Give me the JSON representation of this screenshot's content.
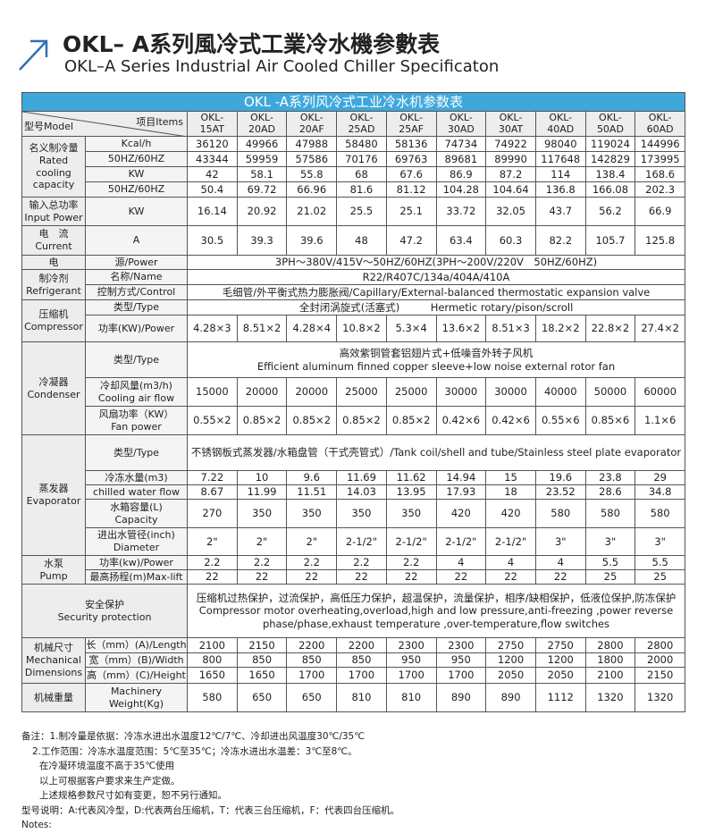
{
  "header": {
    "title": "OKL– A系列風冷式工業冷水機参數表",
    "subtitle": "OKL–A Series Industrial Air Cooled Chiller Specificaton"
  },
  "table": {
    "caption": "OKL -A系列风冷式工业冷水机参数表",
    "corner": {
      "left": "型号Model",
      "right": "项目Items"
    },
    "models": [
      "OKL-\n15AT",
      "OKL-\n20AD",
      "OKL-\n20AF",
      "OKL-\n25AD",
      "OKL-\n25AF",
      "OKL-\n30AD",
      "OKL-\n30AT",
      "OKL-\n40AD",
      "OKL-\n50AD",
      "OKL-\n60AD"
    ],
    "groups": [
      {
        "label": "名义制冷量\nRated\ncooling\ncapacity",
        "rows": [
          {
            "item": "Kcal/h",
            "values": [
              36120,
              49966,
              47988,
              58480,
              58136,
              74734,
              74922,
              98040,
              119024,
              144996
            ]
          },
          {
            "item": "50HZ/60HZ",
            "values": [
              43344,
              59959,
              57586,
              70176,
              69763,
              89681,
              89990,
              117648,
              142829,
              173995
            ]
          },
          {
            "item": "KW",
            "values": [
              42,
              58.1,
              55.8,
              68,
              67.6,
              86.9,
              87.2,
              114,
              138.4,
              168.6
            ]
          },
          {
            "item": "50HZ/60HZ",
            "values": [
              50.4,
              69.72,
              66.96,
              81.6,
              81.12,
              104.28,
              104.64,
              136.8,
              166.08,
              202.3
            ]
          }
        ]
      },
      {
        "label": "输入总功率\nInput Power",
        "rows": [
          {
            "item": "KW",
            "values": [
              16.14,
              20.92,
              21.02,
              25.5,
              25.1,
              33.72,
              32.05,
              43.7,
              56.2,
              66.9
            ]
          }
        ]
      },
      {
        "label": "电　流\nCurrent",
        "rows": [
          {
            "item": "A",
            "values": [
              30.5,
              39.3,
              39.6,
              48,
              47.2,
              63.4,
              60.3,
              82.2,
              105.7,
              125.8
            ]
          }
        ]
      },
      {
        "label": "电",
        "rows": [
          {
            "item": "源/Power",
            "text": "3PH～380V/415V～50HZ/60HZ(3PH～200V/220V　50HZ/60HZ)"
          }
        ]
      },
      {
        "label": "制冷剂\nRefrigerant",
        "rows": [
          {
            "item": "名称/Name",
            "text": "R22/R407C/134a/404A/410A"
          },
          {
            "item": "控制方式/Control",
            "text": "毛细管/外平衡式热力膨胀阀/Capillary/External-balanced thermostatic expansion valve"
          }
        ]
      },
      {
        "label": "压缩机\nCompressor",
        "rows": [
          {
            "item": "类型/Type",
            "text": "全封闭涡旋式(活塞式)　　　Hermetic rotary/pison/scroll"
          },
          {
            "item": "功率(KW)/Power",
            "values": [
              "4.28×3",
              "8.51×2",
              "4.28×4",
              "10.8×2",
              "5.3×4",
              "13.6×2",
              "8.51×3",
              "18.2×2",
              "22.8×2",
              "27.4×2"
            ]
          }
        ]
      },
      {
        "label": "冷凝器\nCondenser",
        "rows": [
          {
            "item": "类型/Type",
            "text": "高效紫铜管套铝翅片式+低噪音外转子风机\nEfficient aluminum finned copper sleeve+low noise external rotor fan"
          },
          {
            "item": "冷却风量(m3/h)\nCooling air flow",
            "values": [
              15000,
              20000,
              20000,
              25000,
              25000,
              30000,
              30000,
              40000,
              50000,
              60000
            ]
          },
          {
            "item": "风扇功率（KW）\nFan power",
            "values": [
              "0.55×2",
              "0.85×2",
              "0.85×2",
              "0.85×2",
              "0.85×2",
              "0.42×6",
              "0.42×6",
              "0.55×6",
              "0.85×6",
              "1.1×6"
            ]
          }
        ]
      },
      {
        "label": "蒸发器\nEvaporator",
        "rows": [
          {
            "item": "类型/Type",
            "text": "不锈钢板式蒸发器/水箱盘管（干式壳管式）/Tank coil/shell and tube/Stainless steel plate evaporator"
          },
          {
            "item": "冷冻水量(m3)",
            "values": [
              7.22,
              10,
              9.6,
              11.69,
              11.62,
              14.94,
              15,
              19.6,
              23.8,
              29
            ]
          },
          {
            "item": "chilled water flow",
            "values": [
              8.67,
              11.99,
              11.51,
              14.03,
              13.95,
              17.93,
              18,
              23.52,
              28.6,
              34.8
            ]
          },
          {
            "item": "水箱容量(L)\nCapacity",
            "values": [
              270,
              350,
              350,
              350,
              350,
              420,
              420,
              580,
              580,
              580
            ]
          },
          {
            "item": "进出水管径(inch)\nDiameter",
            "values": [
              "2\"",
              "2\"",
              "2\"",
              "2-1/2\"",
              "2-1/2\"",
              "2-1/2\"",
              "2-1/2\"",
              "3\"",
              "3\"",
              "3\""
            ]
          }
        ]
      },
      {
        "label": "水泵\nPump",
        "rows": [
          {
            "item": "功率(kw)/Power",
            "values": [
              2.2,
              2.2,
              2.2,
              2.2,
              2.2,
              4,
              4,
              4,
              5.5,
              5.5
            ]
          },
          {
            "item": "最高扬程(m)Max-lift",
            "values": [
              22,
              22,
              22,
              22,
              22,
              22,
              22,
              22,
              25,
              25
            ]
          }
        ]
      },
      {
        "label": "安全保护\nSecurity protection",
        "rows": [
          {
            "text": "压缩机过热保护，过流保护，高低压力保护，超温保护，流量保护，相序/缺相保护，低液位保护,防冻保护\nCompressor motor overheating,overload,high and low pressure,anti-freezing ,power reverse\nphase/phase,exhaust temperature ,over-temperature,flow switches"
          }
        ]
      },
      {
        "label": "机械尺寸\nMechanical\nDimensions",
        "rows": [
          {
            "item": "长（mm）(A)/Length",
            "values": [
              2100,
              2150,
              2200,
              2200,
              2300,
              2300,
              2750,
              2750,
              2800,
              2800
            ]
          },
          {
            "item": "宽（mm）(B)/Width",
            "values": [
              800,
              850,
              850,
              850,
              950,
              950,
              1200,
              1200,
              1800,
              2000
            ]
          },
          {
            "item": "高（mm）(C)/Height",
            "values": [
              1650,
              1650,
              1700,
              1700,
              1700,
              1700,
              2050,
              2050,
              2100,
              2150
            ]
          }
        ]
      },
      {
        "label": "机械重量",
        "rows": [
          {
            "item": "Machinery\nWeight(Kg)",
            "values": [
              580,
              650,
              650,
              810,
              810,
              890,
              890,
              1112,
              1320,
              1320
            ]
          }
        ]
      }
    ]
  },
  "notes": [
    "备注：1.制冷量是依据：冷冻水进出水温度12℃/7℃、冷却进出风温度30℃/35℃",
    "2.工作范围：冷冻水温度范围：5℃至35℃；冷冻水进出水温差：3℃至8℃。",
    "在冷凝环境温度不高于35℃使用",
    "以上可根据客户要求来生产定做。",
    "上述规格参数尺寸如有变更，恕不另行通知。",
    "型号说明：A:代表风冷型，D:代表两台压缩机，T：代表三台压缩机，F：代表四台压缩机。",
    "Notes:"
  ]
}
